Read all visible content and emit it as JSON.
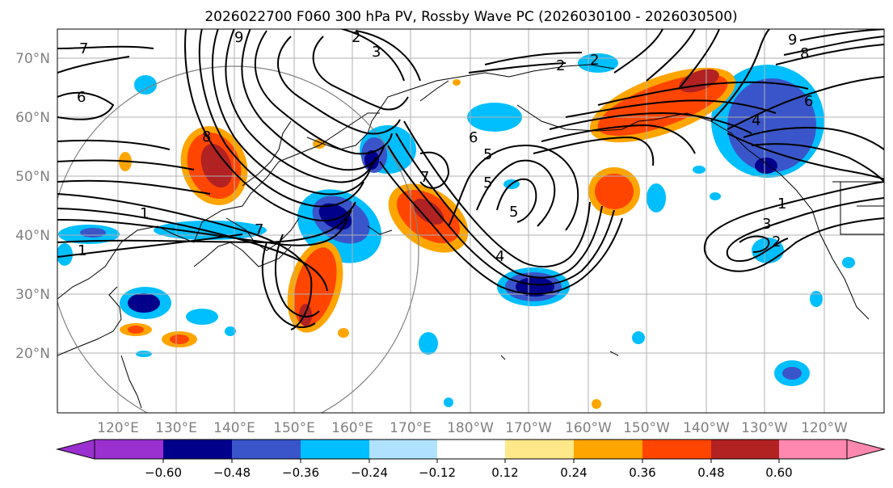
{
  "title": "2026022700 F060 300 hPa PV, Rossby Wave PC (2026030100 - 2026030500)",
  "lat_labels": [
    "70°N",
    "60°N",
    "50°N",
    "40°N",
    "30°N",
    "20°N"
  ],
  "lon_labels": [
    "120°E",
    "130°E",
    "140°E",
    "150°E",
    "160°E",
    "170°E",
    "180°W",
    "170°W",
    "160°W",
    "150°W",
    "140°W",
    "130°W",
    "120°W"
  ],
  "colorbar": {
    "ticks": [
      "−0.60",
      "−0.48",
      "−0.36",
      "−0.24",
      "−0.12",
      "0.12",
      "0.24",
      "0.36",
      "0.48",
      "0.60"
    ],
    "colors": [
      "#9b30d0",
      "#00008b",
      "#3a55c9",
      "#00bfff",
      "#b0e2ff",
      "#ffffff",
      "#ffe88a",
      "#ffa500",
      "#ff4500",
      "#b22222",
      "#ff88b0"
    ]
  },
  "contour_labels": [
    "7",
    "6",
    "1",
    "1",
    "7",
    "2",
    "3",
    "9",
    "8",
    "7",
    "6",
    "4",
    "2",
    "5",
    "5",
    "5",
    "4",
    "1",
    "3",
    "2",
    "2",
    "9",
    "8",
    "6"
  ],
  "colors": {
    "contour": "#000000",
    "circle": "#808080",
    "grid": "#b0b0b0",
    "tick_text": "#808080"
  }
}
